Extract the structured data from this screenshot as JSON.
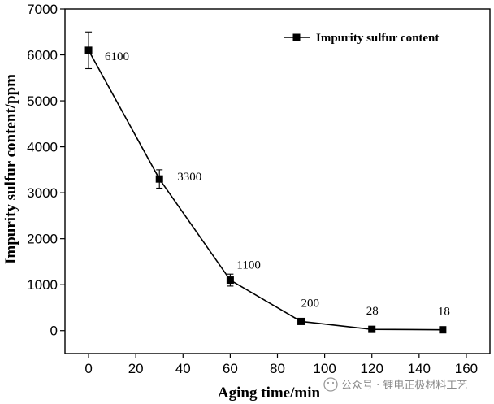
{
  "chart_data": {
    "type": "line",
    "xlabel": "Aging time/min",
    "ylabel": "Impurity sulfur content/ppm",
    "xlim": [
      -10,
      170
    ],
    "ylim": [
      -500,
      7000
    ],
    "x_ticks": [
      0,
      20,
      40,
      60,
      80,
      100,
      120,
      140,
      160
    ],
    "y_ticks": [
      0,
      1000,
      2000,
      3000,
      4000,
      5000,
      6000,
      7000
    ],
    "grid": false,
    "legend_position": "top-right",
    "series": [
      {
        "name": "Impurity sulfur content",
        "marker": "square",
        "color": "#000000",
        "x": [
          0,
          30,
          60,
          90,
          120,
          150
        ],
        "y": [
          6100,
          3300,
          1100,
          200,
          28,
          18
        ],
        "error": [
          400,
          200,
          130,
          0,
          0,
          0
        ],
        "data_labels": [
          "6100",
          "3300",
          "1100",
          "200",
          "28",
          "18"
        ]
      }
    ]
  },
  "watermark": {
    "text": "公众号 · 锂电正极材料工艺"
  }
}
